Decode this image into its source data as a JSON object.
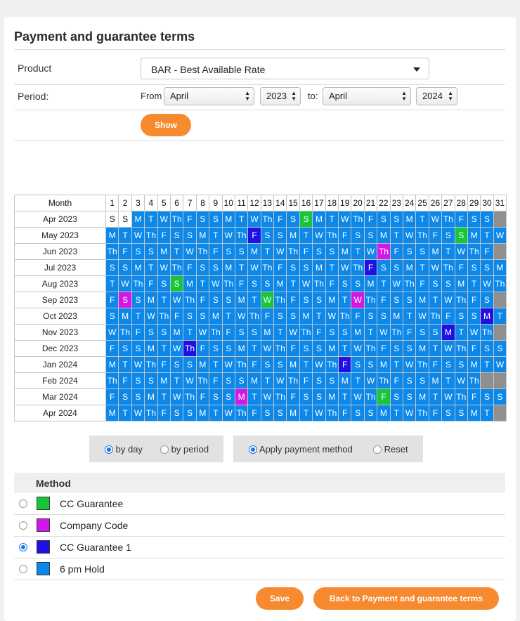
{
  "page": {
    "title": "Payment and guarantee terms"
  },
  "filters": {
    "product_label": "Product",
    "product_value": "BAR - Best Available Rate",
    "period_label": "Period:",
    "from_label": "From",
    "from_month": "April",
    "from_year": "2023",
    "to_label": "to:",
    "to_month": "April",
    "to_year": "2024",
    "show_button": "Show"
  },
  "calendar": {
    "month_header": "Month",
    "days": [
      "1",
      "2",
      "3",
      "4",
      "5",
      "6",
      "7",
      "8",
      "9",
      "10",
      "11",
      "12",
      "13",
      "14",
      "15",
      "16",
      "17",
      "18",
      "19",
      "20",
      "21",
      "22",
      "23",
      "24",
      "25",
      "26",
      "27",
      "28",
      "29",
      "30",
      "31"
    ],
    "colors": {
      "CC": "#16c53a",
      "CO": "#d217e8",
      "G1": "#1f10e6",
      "PM": "#0b88ea"
    },
    "months": [
      {
        "label": "Apr 2023",
        "start": 6,
        "days": 30,
        "blank": [
          1,
          2
        ],
        "marks": {
          "16": "CC"
        }
      },
      {
        "label": "May 2023",
        "start": 1,
        "days": 31,
        "blank": [],
        "marks": {
          "12": "G1",
          "28": "CC"
        }
      },
      {
        "label": "Jun 2023",
        "start": 4,
        "days": 30,
        "blank": [],
        "marks": {
          "22": "CO"
        }
      },
      {
        "label": "Jul 2023",
        "start": 6,
        "days": 31,
        "blank": [],
        "marks": {
          "21": "G1"
        }
      },
      {
        "label": "Aug 2023",
        "start": 2,
        "days": 31,
        "blank": [],
        "marks": {
          "6": "CC"
        }
      },
      {
        "label": "Sep 2023",
        "start": 5,
        "days": 30,
        "blank": [],
        "marks": {
          "2": "CO",
          "13": "CC",
          "20": "CO"
        }
      },
      {
        "label": "Oct 2023",
        "start": 0,
        "days": 31,
        "blank": [],
        "marks": {
          "30": "G1"
        }
      },
      {
        "label": "Nov 2023",
        "start": 3,
        "days": 30,
        "blank": [],
        "marks": {
          "27": "G1"
        }
      },
      {
        "label": "Dec 2023",
        "start": 5,
        "days": 31,
        "blank": [],
        "marks": {
          "7": "G1"
        }
      },
      {
        "label": "Jan 2024",
        "start": 1,
        "days": 31,
        "blank": [],
        "marks": {
          "19": "G1"
        }
      },
      {
        "label": "Feb 2024",
        "start": 4,
        "days": 29,
        "blank": [],
        "marks": {}
      },
      {
        "label": "Mar 2024",
        "start": 5,
        "days": 31,
        "blank": [],
        "marks": {
          "11": "CO",
          "22": "CC"
        }
      },
      {
        "label": "Apr 2024",
        "start": 1,
        "days": 30,
        "blank": [],
        "marks": {}
      }
    ],
    "weekday_abbr": [
      "S",
      "M",
      "T",
      "W",
      "Th",
      "F",
      "S"
    ]
  },
  "mode_toggle": {
    "by_day": "by day",
    "by_period": "by period",
    "selected": "by day"
  },
  "action_toggle": {
    "apply": "Apply payment method",
    "reset": "Reset",
    "selected": "apply"
  },
  "methods": {
    "header": "Method",
    "items": [
      {
        "label": "CC Guarantee",
        "color": "#16c53a",
        "selected": false
      },
      {
        "label": "Company Code",
        "color": "#d217e8",
        "selected": false
      },
      {
        "label": "CC Guarantee 1",
        "color": "#1f10e6",
        "selected": true
      },
      {
        "label": "6 pm Hold",
        "color": "#0b88ea",
        "selected": false
      }
    ]
  },
  "actions": {
    "save": "Save",
    "back": "Back to Payment and guarantee terms"
  }
}
